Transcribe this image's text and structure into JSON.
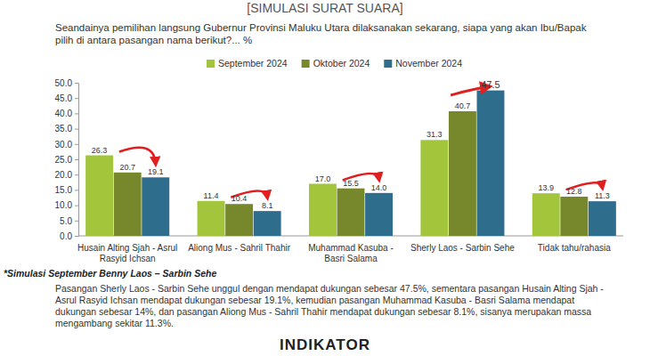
{
  "chart_data": {
    "type": "bar",
    "title": "[SIMULASI SURAT SUARA]",
    "subtitle": "Seandainya pemilihan langsung Gubernur Provinsi Maluku Utara dilaksanakan sekarang, siapa yang akan Ibu/Bapak pilih di antara pasangan nama berikut?... %",
    "categories": [
      "Husain Alting Sjah - Asrul Rasyid Ichsan",
      "Aliong Mus - Sahril Thahir",
      "Muhammad Kasuba - Basri Salama",
      "Sherly Laos - Sarbin Sehe",
      "Tidak tahu/rahasia"
    ],
    "series": [
      {
        "name": "September 2024",
        "color": "#a2c53c",
        "values": [
          26.3,
          11.4,
          17.0,
          31.3,
          13.9
        ],
        "value_labels": [
          "26.3",
          "11.4",
          "17.0",
          "31.3",
          "13.9"
        ]
      },
      {
        "name": "Oktober 2024",
        "color": "#77872c",
        "values": [
          20.7,
          10.4,
          15.5,
          40.7,
          12.8
        ],
        "value_labels": [
          "20.7",
          "10.4",
          "15.5",
          "40.7",
          "12.8"
        ]
      },
      {
        "name": "November 2024",
        "color": "#2f6d8c",
        "values": [
          19.1,
          8.1,
          14.0,
          47.5,
          11.3
        ],
        "value_labels": [
          "19.1",
          "8.1",
          "14.0",
          "47.5",
          "11.3"
        ]
      }
    ],
    "ylim": [
      0,
      50
    ],
    "yticks": [
      {
        "value": 0,
        "label": "0.0"
      },
      {
        "value": 5,
        "label": "5.0"
      },
      {
        "value": 10,
        "label": "10.0"
      },
      {
        "value": 15,
        "label": "15.0"
      },
      {
        "value": 20,
        "label": "20.0"
      },
      {
        "value": 25,
        "label": "25.0"
      },
      {
        "value": 30,
        "label": "30.0"
      },
      {
        "value": 35,
        "label": "35.0"
      },
      {
        "value": 40,
        "label": "40.0"
      },
      {
        "value": 45,
        "label": "45.0"
      },
      {
        "value": 50,
        "label": "50.0"
      }
    ],
    "grid": false,
    "legend": "top",
    "data_labels": true,
    "footnote": "*Simulasi September Benny Laos – Sarbin Sehe",
    "description": "Pasangan Sherly Laos - Sarbin Sehe unggul dengan mendapat dukungan sebesar 47.5%, sementara pasangan Husain Alting Sjah - Asrul Rasyid Ichsan mendapat dukungan sebesar 19.1%, kemudian pasangan Muhammad Kasuba - Basri Salama mendapat dukungan sebesar 14%, dan pasangan Aliong Mus - Sahril Thahir mendapat dukungan sebesar 8.1%, sisanya merupakan massa mengambang sekitar 11.3%.",
    "logo": "INDIKATOR"
  }
}
